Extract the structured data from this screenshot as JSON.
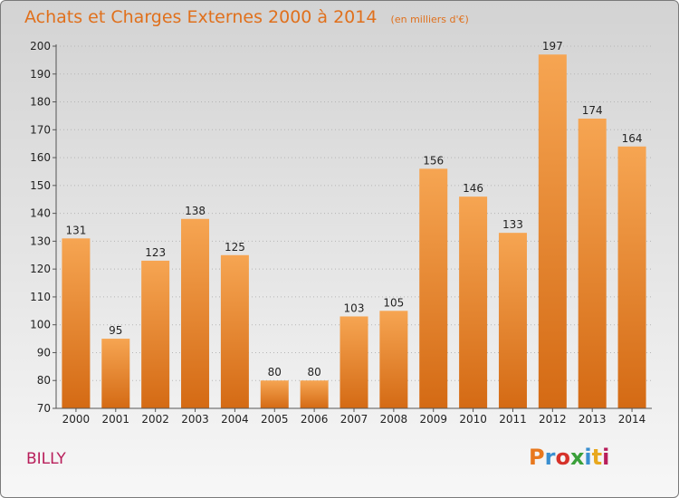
{
  "header": {
    "title": "Achats et Charges Externes 2000 à 2014",
    "unit": "(en milliers d'€)"
  },
  "footer": {
    "commune": "BILLY",
    "logo": "Proxiti",
    "logo_colors": [
      "#e8781e",
      "#3a8fd0",
      "#d6322a",
      "#3aa03a",
      "#3a8fd0",
      "#e8a81e",
      "#b81e5a"
    ]
  },
  "colors": {
    "bar_top": "#f6a552",
    "bar_bottom": "#d46a14",
    "title": "#e0701c",
    "commune": "#b81e5a"
  },
  "chart_data": {
    "type": "bar",
    "title": "Achats et Charges Externes 2000 à 2014",
    "subtitle": "(en milliers d'€)",
    "categories": [
      "2000",
      "2001",
      "2002",
      "2003",
      "2004",
      "2005",
      "2006",
      "2007",
      "2008",
      "2009",
      "2010",
      "2011",
      "2012",
      "2013",
      "2014"
    ],
    "values": [
      131,
      95,
      123,
      138,
      125,
      80,
      80,
      103,
      105,
      156,
      146,
      133,
      197,
      174,
      164
    ],
    "ylim": [
      70,
      200
    ],
    "yticks": [
      70,
      80,
      90,
      100,
      110,
      120,
      130,
      140,
      150,
      160,
      170,
      180,
      190,
      200
    ],
    "grid": "horizontal-dotted",
    "data_labels": true,
    "legend": "none"
  }
}
